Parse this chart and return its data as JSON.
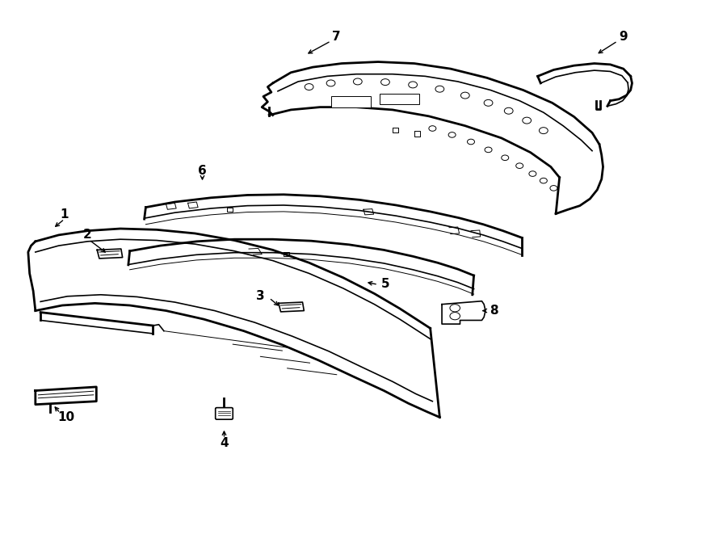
{
  "bg_color": "#ffffff",
  "line_color": "#000000",
  "lw_thick": 2.0,
  "lw_med": 1.2,
  "lw_thin": 0.7,
  "fig_width": 9.0,
  "fig_height": 6.61,
  "dpi": 100
}
